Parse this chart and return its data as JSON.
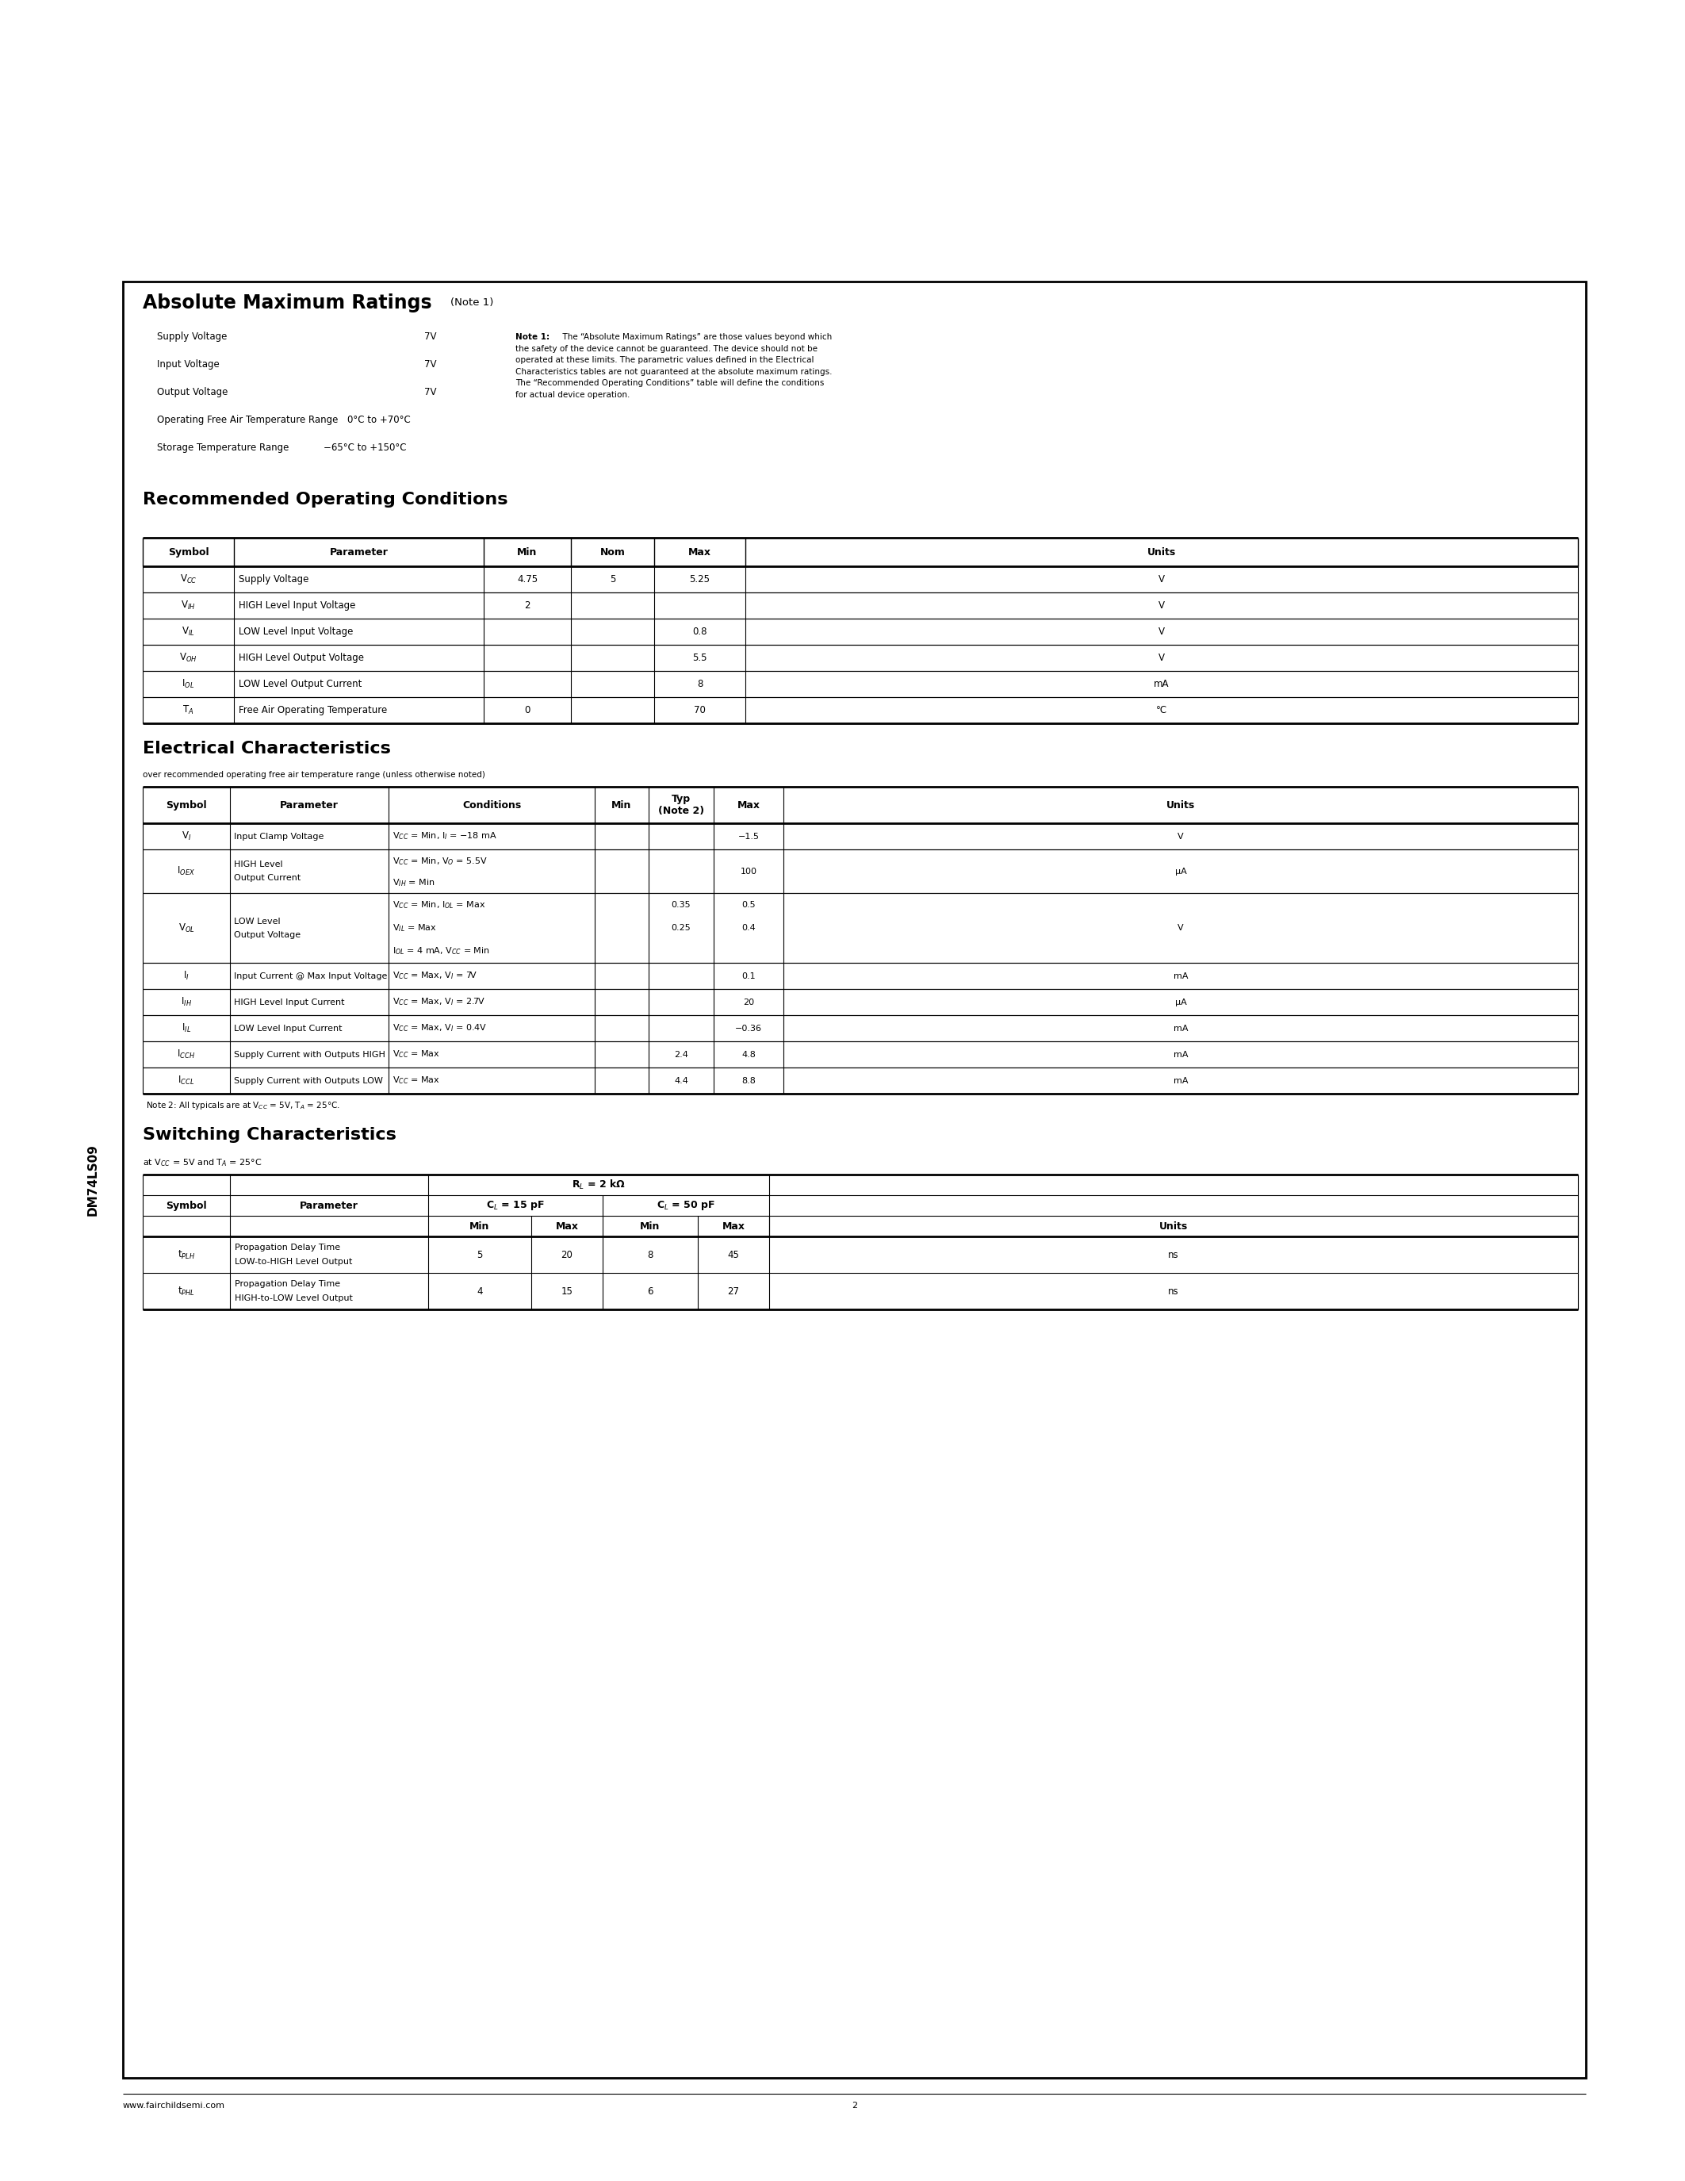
{
  "page_bg": "#ffffff",
  "border_color": "#000000",
  "sidebar_text": "DM74LS09",
  "abs_max_title": "Absolute Maximum Ratings",
  "abs_max_note_label": "(Note 1)",
  "abs_max_items": [
    [
      "Supply Voltage",
      "7V"
    ],
    [
      "Input Voltage",
      "7V"
    ],
    [
      "Output Voltage",
      "7V"
    ],
    [
      "Operating Free Air Temperature Range",
      "0°C to +70°C"
    ],
    [
      "Storage Temperature Range",
      "−65°C to +150°C"
    ]
  ],
  "note1_bold": "Note 1:",
  "note1_text": "  The “Absolute Maximum Ratings” are those values beyond which the safety of the device cannot be guaranteed. The device should not be operated at these limits. The parametric values defined in the Electrical Characteristics tables are not guaranteed at the absolute maximum ratings. The “Recommended Operating Conditions” table will define the conditions for actual device operation.",
  "note1_lines": [
    "Note 1:  The “Absolute Maximum Ratings” are those values beyond which",
    "the safety of the device cannot be guaranteed. The device should not be",
    "operated at these limits. The parametric values defined in the Electrical",
    "Characteristics tables are not guaranteed at the absolute maximum ratings.",
    "The “Recommended Operating Conditions” table will define the conditions",
    "for actual device operation."
  ],
  "roc_title": "Recommended Operating Conditions",
  "roc_headers": [
    "Symbol",
    "Parameter",
    "Min",
    "Nom",
    "Max",
    "Units"
  ],
  "roc_symbols": [
    "V$_{CC}$",
    "V$_{IH}$",
    "V$_{IL}$",
    "V$_{OH}$",
    "I$_{OL}$",
    "T$_A$"
  ],
  "roc_params": [
    "Supply Voltage",
    "HIGH Level Input Voltage",
    "LOW Level Input Voltage",
    "HIGH Level Output Voltage",
    "LOW Level Output Current",
    "Free Air Operating Temperature"
  ],
  "roc_min": [
    "4.75",
    "2",
    "",
    "",
    "",
    "0"
  ],
  "roc_nom": [
    "5",
    "",
    "",
    "",
    "",
    ""
  ],
  "roc_max": [
    "5.25",
    "",
    "0.8",
    "5.5",
    "8",
    "70"
  ],
  "roc_units": [
    "V",
    "V",
    "V",
    "V",
    "mA",
    "°C"
  ],
  "ec_title": "Electrical Characteristics",
  "ec_subtitle": "over recommended operating free air temperature range (unless otherwise noted)",
  "ec_headers": [
    "Symbol",
    "Parameter",
    "Conditions",
    "Min",
    "Typ\n(Note 2)",
    "Max",
    "Units"
  ],
  "ec_rows": [
    {
      "symbol": "V$_I$",
      "param": "Input Clamp Voltage",
      "cond_lines": [
        "V$_{CC}$ = Min, I$_I$ = −18 mA"
      ],
      "min": "",
      "typ": "",
      "max": "−1.5",
      "units": "V",
      "sub_rows": 1
    },
    {
      "symbol": "I$_{OEX}$",
      "param_lines": [
        "HIGH Level",
        "Output Current"
      ],
      "cond_lines": [
        "V$_{CC}$ = Min, V$_O$ = 5.5V",
        "V$_{IH}$ = Min"
      ],
      "min": "",
      "typ": "",
      "max": "100",
      "units": "μA",
      "sub_rows": 2
    },
    {
      "symbol": "V$_{OL}$",
      "param_lines": [
        "LOW Level",
        "Output Voltage"
      ],
      "cond_lines": [
        "V$_{CC}$ = Min, I$_{OL}$ = Max",
        "V$_{IL}$ = Max",
        "I$_{OL}$ = 4 mA, V$_{CC}$ = Min"
      ],
      "sub_data": [
        {
          "min": "",
          "typ": "0.35",
          "max": "0.5"
        },
        {
          "min": "",
          "typ": "0.25",
          "max": "0.4"
        }
      ],
      "units": "V",
      "sub_rows": 3
    },
    {
      "symbol": "I$_I$",
      "param": "Input Current @ Max Input Voltage",
      "cond_lines": [
        "V$_{CC}$ = Max, V$_I$ = 7V"
      ],
      "min": "",
      "typ": "",
      "max": "0.1",
      "units": "mA",
      "sub_rows": 1
    },
    {
      "symbol": "I$_{IH}$",
      "param": "HIGH Level Input Current",
      "cond_lines": [
        "V$_{CC}$ = Max, V$_I$ = 2.7V"
      ],
      "min": "",
      "typ": "",
      "max": "20",
      "units": "μA",
      "sub_rows": 1
    },
    {
      "symbol": "I$_{IL}$",
      "param": "LOW Level Input Current",
      "cond_lines": [
        "V$_{CC}$ = Max, V$_I$ = 0.4V"
      ],
      "min": "",
      "typ": "",
      "max": "−0.36",
      "units": "mA",
      "sub_rows": 1
    },
    {
      "symbol": "I$_{CCH}$",
      "param": "Supply Current with Outputs HIGH",
      "cond_lines": [
        "V$_{CC}$ = Max"
      ],
      "min": "",
      "typ": "2.4",
      "max": "4.8",
      "units": "mA",
      "sub_rows": 1
    },
    {
      "symbol": "I$_{CCL}$",
      "param": "Supply Current with Outputs LOW",
      "cond_lines": [
        "V$_{CC}$ = Max"
      ],
      "min": "",
      "typ": "4.4",
      "max": "8.8",
      "units": "mA",
      "sub_rows": 1
    }
  ],
  "note2_text": "Note 2: All typicals are at V$_{CC}$ = 5V, T$_A$ = 25°C.",
  "sc_title": "Switching Characteristics",
  "sc_subtitle": "at V$_{CC}$ = 5V and T$_A$ = 25°C",
  "sc_rl": "R$_L$ = 2 kΩ",
  "sc_cl1": "C$_L$ = 15 pF",
  "sc_cl2": "C$_L$ = 50 pF",
  "sc_rows": [
    {
      "symbol": "t$_{PLH}$",
      "param_lines": [
        "Propagation Delay Time",
        "LOW-to-HIGH Level Output"
      ],
      "mn1": "5",
      "mx1": "20",
      "mn2": "8",
      "mx2": "45",
      "units": "ns"
    },
    {
      "symbol": "t$_{PHL}$",
      "param_lines": [
        "Propagation Delay Time",
        "HIGH-to-LOW Level Output"
      ],
      "mn1": "4",
      "mx1": "15",
      "mn2": "6",
      "mx2": "27",
      "units": "ns"
    }
  ],
  "footer_left": "www.fairchildsemi.com",
  "footer_center": "2"
}
